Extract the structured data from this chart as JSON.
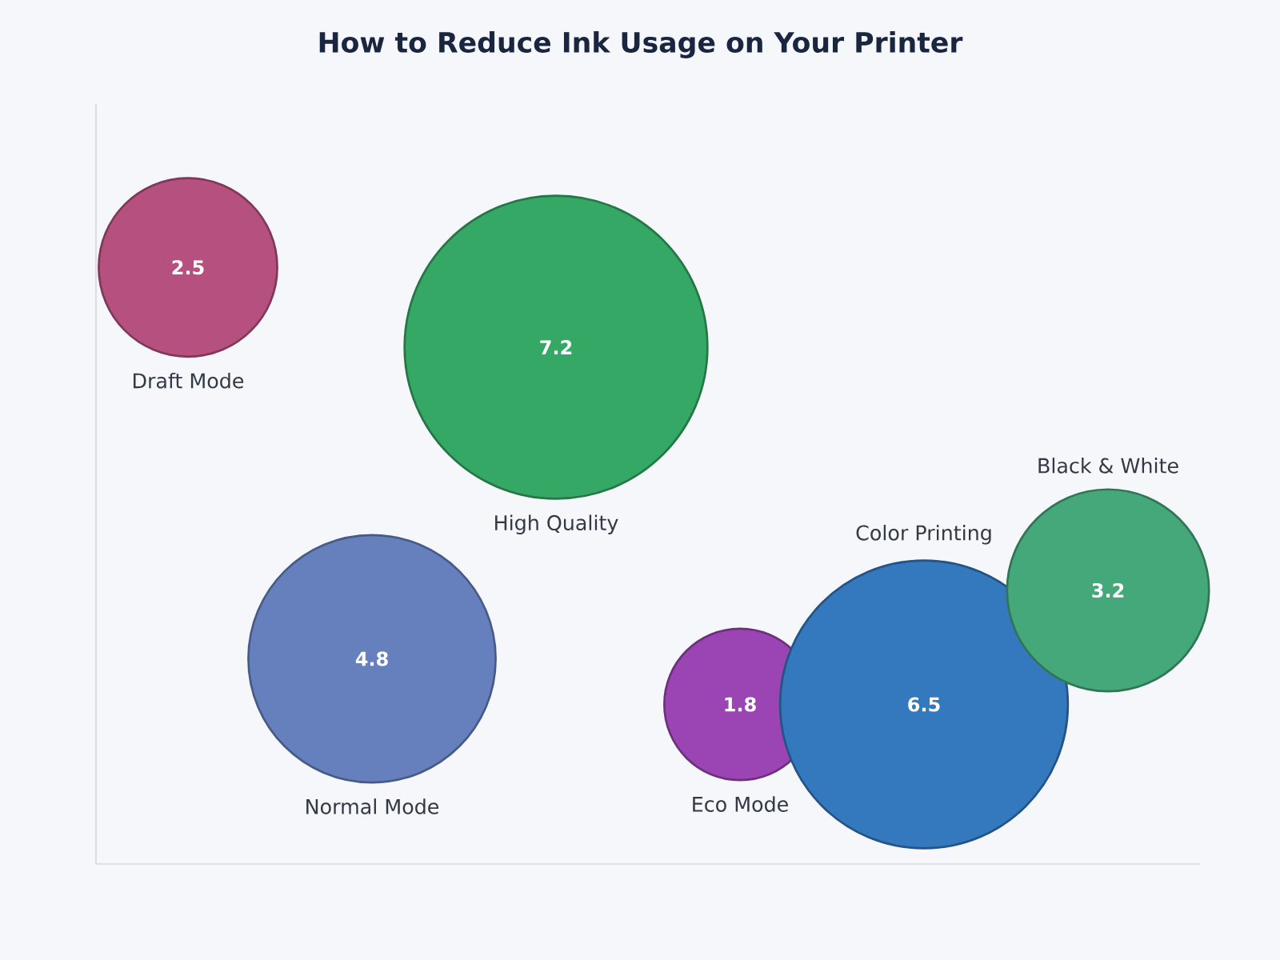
{
  "chart_data": {
    "type": "other",
    "title": "How to Reduce Ink Usage on Your Printer",
    "categories": [
      "Draft Mode",
      "Normal Mode",
      "High Quality",
      "Eco Mode",
      "Color Printing",
      "Black & White"
    ],
    "values": [
      2.5,
      4.8,
      7.2,
      1.8,
      6.5,
      3.2
    ],
    "colors": [
      "#b5507f",
      "#6680be",
      "#35a865",
      "#9b45b5",
      "#3478be",
      "#45a87a"
    ],
    "data_labels": true
  }
}
